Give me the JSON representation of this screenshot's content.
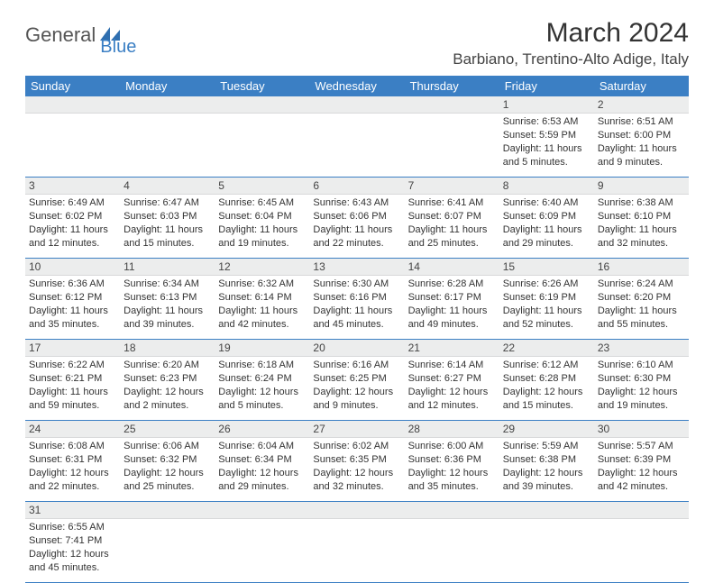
{
  "branding": {
    "part1": "General",
    "part2": "Blue",
    "text_color": "#555555",
    "accent_color": "#3b7fc4"
  },
  "header": {
    "month_title": "March 2024",
    "location": "Barbiano, Trentino-Alto Adige, Italy"
  },
  "calendar": {
    "header_bg": "#3b7fc4",
    "header_text": "#ffffff",
    "row_border": "#3b7fc4",
    "daynum_bg": "#eceded",
    "day_names": [
      "Sunday",
      "Monday",
      "Tuesday",
      "Wednesday",
      "Thursday",
      "Friday",
      "Saturday"
    ],
    "weeks": [
      [
        null,
        null,
        null,
        null,
        null,
        {
          "n": "1",
          "sr": "Sunrise: 6:53 AM",
          "ss": "Sunset: 5:59 PM",
          "d1": "Daylight: 11 hours",
          "d2": "and 5 minutes."
        },
        {
          "n": "2",
          "sr": "Sunrise: 6:51 AM",
          "ss": "Sunset: 6:00 PM",
          "d1": "Daylight: 11 hours",
          "d2": "and 9 minutes."
        }
      ],
      [
        {
          "n": "3",
          "sr": "Sunrise: 6:49 AM",
          "ss": "Sunset: 6:02 PM",
          "d1": "Daylight: 11 hours",
          "d2": "and 12 minutes."
        },
        {
          "n": "4",
          "sr": "Sunrise: 6:47 AM",
          "ss": "Sunset: 6:03 PM",
          "d1": "Daylight: 11 hours",
          "d2": "and 15 minutes."
        },
        {
          "n": "5",
          "sr": "Sunrise: 6:45 AM",
          "ss": "Sunset: 6:04 PM",
          "d1": "Daylight: 11 hours",
          "d2": "and 19 minutes."
        },
        {
          "n": "6",
          "sr": "Sunrise: 6:43 AM",
          "ss": "Sunset: 6:06 PM",
          "d1": "Daylight: 11 hours",
          "d2": "and 22 minutes."
        },
        {
          "n": "7",
          "sr": "Sunrise: 6:41 AM",
          "ss": "Sunset: 6:07 PM",
          "d1": "Daylight: 11 hours",
          "d2": "and 25 minutes."
        },
        {
          "n": "8",
          "sr": "Sunrise: 6:40 AM",
          "ss": "Sunset: 6:09 PM",
          "d1": "Daylight: 11 hours",
          "d2": "and 29 minutes."
        },
        {
          "n": "9",
          "sr": "Sunrise: 6:38 AM",
          "ss": "Sunset: 6:10 PM",
          "d1": "Daylight: 11 hours",
          "d2": "and 32 minutes."
        }
      ],
      [
        {
          "n": "10",
          "sr": "Sunrise: 6:36 AM",
          "ss": "Sunset: 6:12 PM",
          "d1": "Daylight: 11 hours",
          "d2": "and 35 minutes."
        },
        {
          "n": "11",
          "sr": "Sunrise: 6:34 AM",
          "ss": "Sunset: 6:13 PM",
          "d1": "Daylight: 11 hours",
          "d2": "and 39 minutes."
        },
        {
          "n": "12",
          "sr": "Sunrise: 6:32 AM",
          "ss": "Sunset: 6:14 PM",
          "d1": "Daylight: 11 hours",
          "d2": "and 42 minutes."
        },
        {
          "n": "13",
          "sr": "Sunrise: 6:30 AM",
          "ss": "Sunset: 6:16 PM",
          "d1": "Daylight: 11 hours",
          "d2": "and 45 minutes."
        },
        {
          "n": "14",
          "sr": "Sunrise: 6:28 AM",
          "ss": "Sunset: 6:17 PM",
          "d1": "Daylight: 11 hours",
          "d2": "and 49 minutes."
        },
        {
          "n": "15",
          "sr": "Sunrise: 6:26 AM",
          "ss": "Sunset: 6:19 PM",
          "d1": "Daylight: 11 hours",
          "d2": "and 52 minutes."
        },
        {
          "n": "16",
          "sr": "Sunrise: 6:24 AM",
          "ss": "Sunset: 6:20 PM",
          "d1": "Daylight: 11 hours",
          "d2": "and 55 minutes."
        }
      ],
      [
        {
          "n": "17",
          "sr": "Sunrise: 6:22 AM",
          "ss": "Sunset: 6:21 PM",
          "d1": "Daylight: 11 hours",
          "d2": "and 59 minutes."
        },
        {
          "n": "18",
          "sr": "Sunrise: 6:20 AM",
          "ss": "Sunset: 6:23 PM",
          "d1": "Daylight: 12 hours",
          "d2": "and 2 minutes."
        },
        {
          "n": "19",
          "sr": "Sunrise: 6:18 AM",
          "ss": "Sunset: 6:24 PM",
          "d1": "Daylight: 12 hours",
          "d2": "and 5 minutes."
        },
        {
          "n": "20",
          "sr": "Sunrise: 6:16 AM",
          "ss": "Sunset: 6:25 PM",
          "d1": "Daylight: 12 hours",
          "d2": "and 9 minutes."
        },
        {
          "n": "21",
          "sr": "Sunrise: 6:14 AM",
          "ss": "Sunset: 6:27 PM",
          "d1": "Daylight: 12 hours",
          "d2": "and 12 minutes."
        },
        {
          "n": "22",
          "sr": "Sunrise: 6:12 AM",
          "ss": "Sunset: 6:28 PM",
          "d1": "Daylight: 12 hours",
          "d2": "and 15 minutes."
        },
        {
          "n": "23",
          "sr": "Sunrise: 6:10 AM",
          "ss": "Sunset: 6:30 PM",
          "d1": "Daylight: 12 hours",
          "d2": "and 19 minutes."
        }
      ],
      [
        {
          "n": "24",
          "sr": "Sunrise: 6:08 AM",
          "ss": "Sunset: 6:31 PM",
          "d1": "Daylight: 12 hours",
          "d2": "and 22 minutes."
        },
        {
          "n": "25",
          "sr": "Sunrise: 6:06 AM",
          "ss": "Sunset: 6:32 PM",
          "d1": "Daylight: 12 hours",
          "d2": "and 25 minutes."
        },
        {
          "n": "26",
          "sr": "Sunrise: 6:04 AM",
          "ss": "Sunset: 6:34 PM",
          "d1": "Daylight: 12 hours",
          "d2": "and 29 minutes."
        },
        {
          "n": "27",
          "sr": "Sunrise: 6:02 AM",
          "ss": "Sunset: 6:35 PM",
          "d1": "Daylight: 12 hours",
          "d2": "and 32 minutes."
        },
        {
          "n": "28",
          "sr": "Sunrise: 6:00 AM",
          "ss": "Sunset: 6:36 PM",
          "d1": "Daylight: 12 hours",
          "d2": "and 35 minutes."
        },
        {
          "n": "29",
          "sr": "Sunrise: 5:59 AM",
          "ss": "Sunset: 6:38 PM",
          "d1": "Daylight: 12 hours",
          "d2": "and 39 minutes."
        },
        {
          "n": "30",
          "sr": "Sunrise: 5:57 AM",
          "ss": "Sunset: 6:39 PM",
          "d1": "Daylight: 12 hours",
          "d2": "and 42 minutes."
        }
      ],
      [
        {
          "n": "31",
          "sr": "Sunrise: 6:55 AM",
          "ss": "Sunset: 7:41 PM",
          "d1": "Daylight: 12 hours",
          "d2": "and 45 minutes."
        },
        null,
        null,
        null,
        null,
        null,
        null
      ]
    ]
  }
}
